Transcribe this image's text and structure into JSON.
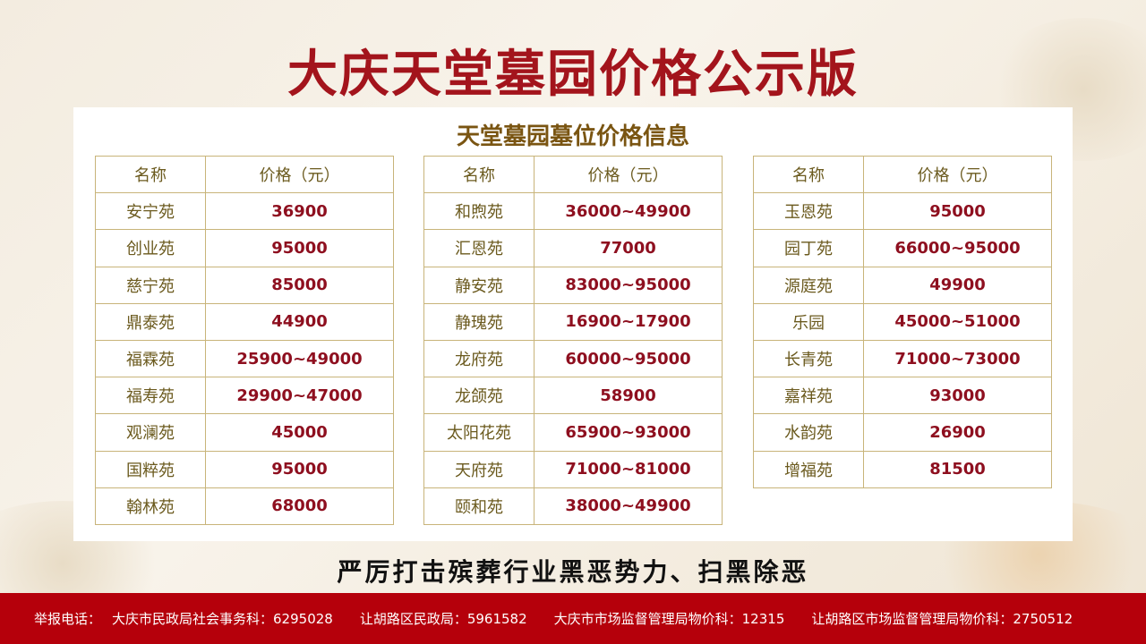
{
  "title": "大庆天堂墓园价格公示版",
  "subtitle": "天堂墓园墓位价格信息",
  "headers": {
    "name": "名称",
    "price": "价格（元）"
  },
  "tables": [
    [
      {
        "n": "安宁苑",
        "p": "36900"
      },
      {
        "n": "创业苑",
        "p": "95000"
      },
      {
        "n": "慈宁苑",
        "p": "85000"
      },
      {
        "n": "鼎泰苑",
        "p": "44900"
      },
      {
        "n": "福霖苑",
        "p": "25900~49000"
      },
      {
        "n": "福寿苑",
        "p": "29900~47000"
      },
      {
        "n": "观澜苑",
        "p": "45000"
      },
      {
        "n": "国粹苑",
        "p": "95000"
      },
      {
        "n": "翰林苑",
        "p": "68000"
      }
    ],
    [
      {
        "n": "和煦苑",
        "p": "36000~49900"
      },
      {
        "n": "汇恩苑",
        "p": "77000"
      },
      {
        "n": "静安苑",
        "p": "83000~95000"
      },
      {
        "n": "静瑰苑",
        "p": "16900~17900"
      },
      {
        "n": "龙府苑",
        "p": "60000~95000"
      },
      {
        "n": "龙颌苑",
        "p": "58900"
      },
      {
        "n": "太阳花苑",
        "p": "65900~93000"
      },
      {
        "n": "天府苑",
        "p": "71000~81000"
      },
      {
        "n": "颐和苑",
        "p": "38000~49900"
      }
    ],
    [
      {
        "n": "玉恩苑",
        "p": "95000"
      },
      {
        "n": "园丁苑",
        "p": "66000~95000"
      },
      {
        "n": "源庭苑",
        "p": "49900"
      },
      {
        "n": "乐园",
        "p": "45000~51000"
      },
      {
        "n": "长青苑",
        "p": "71000~73000"
      },
      {
        "n": "嘉祥苑",
        "p": "93000"
      },
      {
        "n": "水韵苑",
        "p": "26900"
      },
      {
        "n": "增福苑",
        "p": "81500"
      }
    ]
  ],
  "slogan": "严厉打击殡葬行业黑恶势力、扫黑除恶",
  "footer": {
    "label": "举报电话：",
    "items": [
      "大庆市民政局社会事务科：6295028",
      "让胡路区民政局：5961582",
      "大庆市市场监督管理局物价科：12315",
      "让胡路区市场监督管理局物价科：2750512"
    ]
  }
}
